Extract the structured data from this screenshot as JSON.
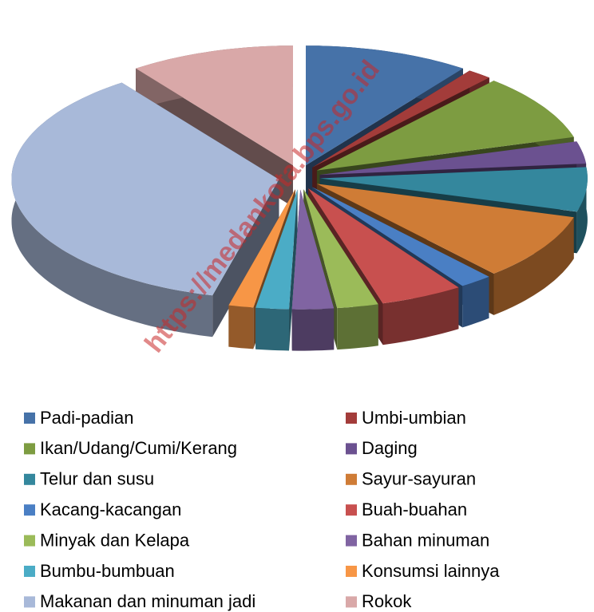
{
  "chart_data": {
    "type": "pie3d",
    "categories": [
      "Padi-padian",
      "Umbi-umbian",
      "Ikan/Udang/Cumi/Kerang",
      "Daging",
      "Telur dan susu",
      "Sayur-sayuran",
      "Kacang-kacangan",
      "Buah-buahan",
      "Minyak dan Kelapa",
      "Bahan minuman",
      "Bumbu-bumbuan",
      "Konsumsi lainnya",
      "Makanan dan minuman jadi",
      "Rokok"
    ],
    "values": [
      10,
      1.5,
      9,
      3,
      6,
      9,
      2,
      5,
      2.5,
      2.5,
      2,
      1.5,
      36,
      10
    ],
    "colors": [
      "#4672a8",
      "#a33c3a",
      "#7d9c41",
      "#6b5190",
      "#34879d",
      "#cf7c36",
      "#4a7fc4",
      "#c8504f",
      "#9bbb59",
      "#8064a2",
      "#4bacc6",
      "#f79646",
      "#a8b9d9",
      "#d9a8a8"
    ],
    "legend": "bottom",
    "watermark": "https://medankota.bps.go.id"
  }
}
